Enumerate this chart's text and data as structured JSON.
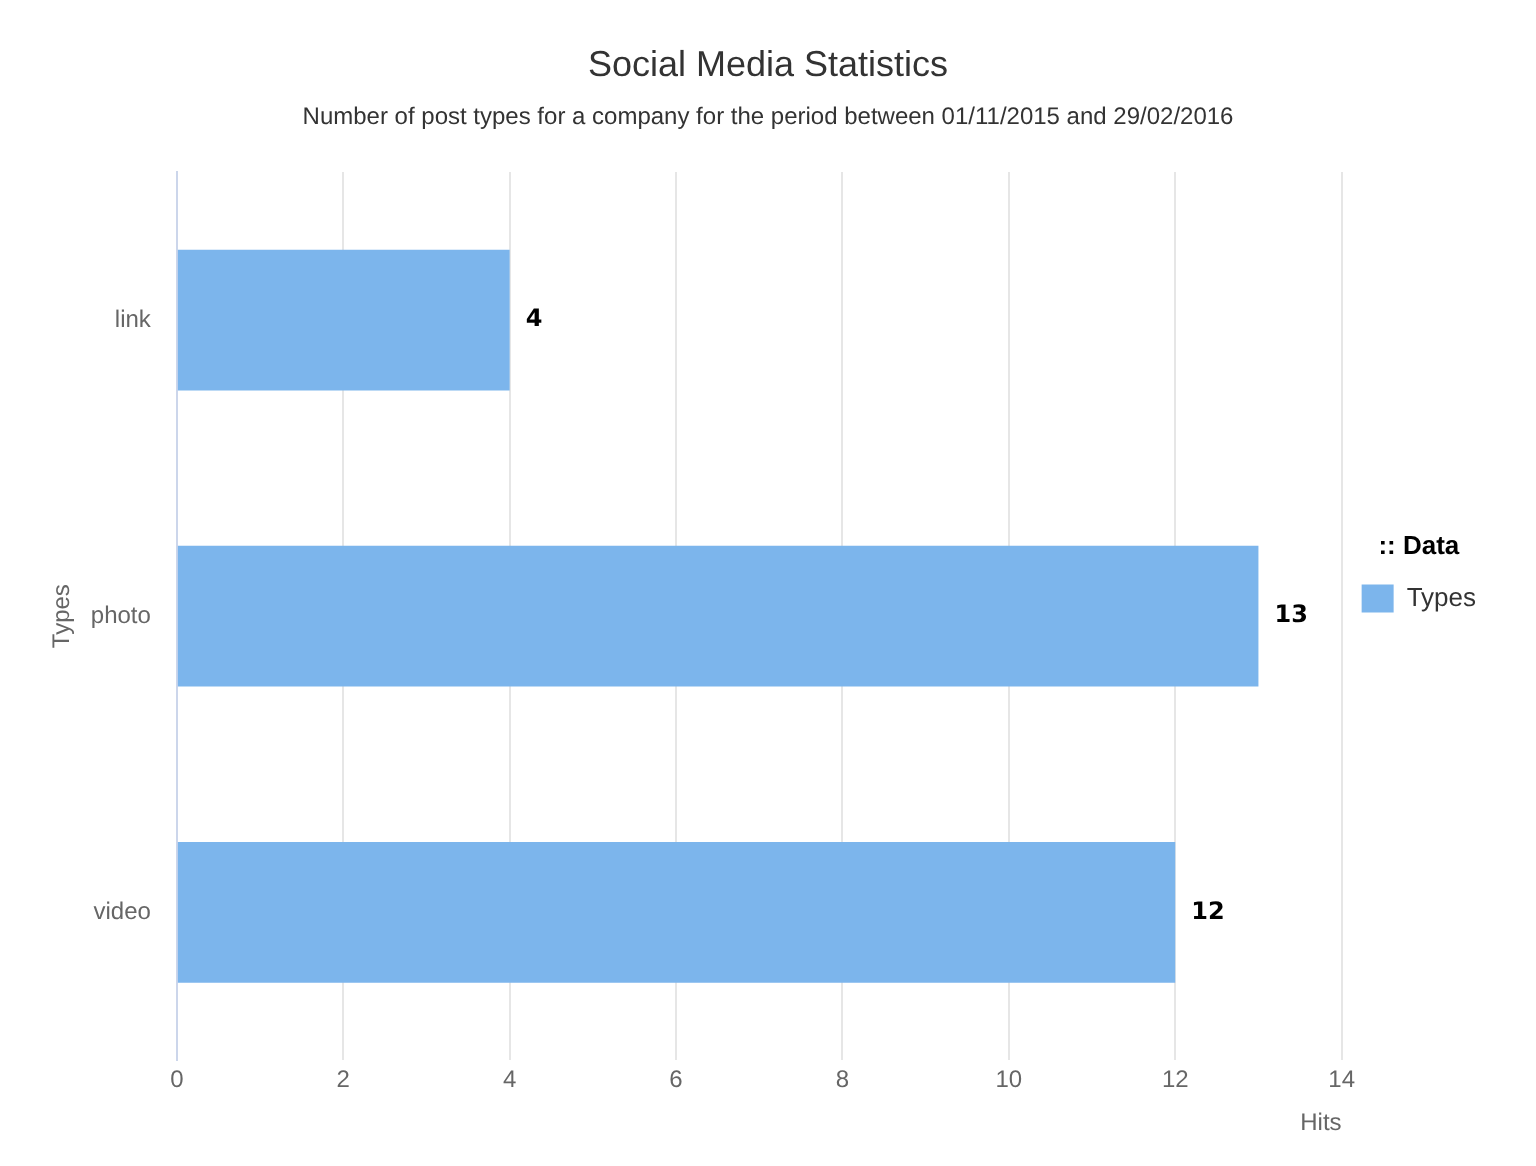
{
  "chart_data": {
    "type": "bar",
    "orientation": "horizontal",
    "title": "Social Media Statistics",
    "subtitle": "Number of post types for a company for the period between 01/11/2015 and 29/02/2016",
    "xlabel": "Hits",
    "ylabel": "Types",
    "legend_title": ":: Data",
    "categories": [
      "link",
      "photo",
      "video"
    ],
    "series": [
      {
        "name": "Types",
        "color": "#7cb5ec",
        "values": [
          4,
          13,
          12
        ]
      }
    ],
    "xlim": [
      0,
      14
    ],
    "xticks": [
      0,
      2,
      4,
      6,
      8,
      10,
      12,
      14
    ],
    "grid": "x",
    "legend": "right",
    "data_labels": true
  }
}
